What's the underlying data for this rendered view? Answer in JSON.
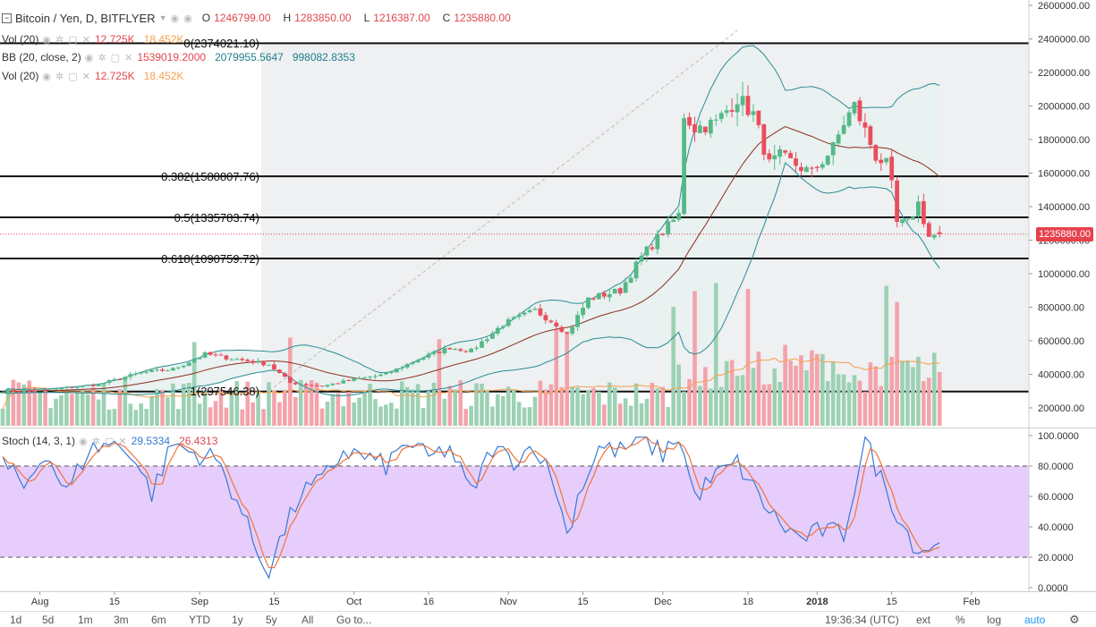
{
  "header": {
    "title": "Bitcoin / Yen, D, BITFLYER",
    "open_label": "O",
    "open": "1246799.00",
    "high_label": "H",
    "high": "1283850.00",
    "low_label": "L",
    "low": "1216387.00",
    "close_label": "C",
    "close": "1235880.00"
  },
  "legends": {
    "vol1": {
      "name": "Vol (20)",
      "v1": "12.725K",
      "v2": "18.452K"
    },
    "bb": {
      "name": "BB (20, close, 2)",
      "mid": "1539019.2000",
      "upper": "2079955.5647",
      "lower": "998082.8353"
    },
    "vol2": {
      "name": "Vol (20)",
      "v1": "12.725K",
      "v2": "18.452K"
    },
    "stoch": {
      "name": "Stoch (14, 3, 1)",
      "k": "29.5334",
      "d": "26.4313"
    }
  },
  "fib_labels": [
    "0(2374021.10)",
    "0.382(1580807.76)",
    "0.5(1335783.74)",
    "0.618(1090759.72)",
    "1(297546.38)"
  ],
  "last_price_tag": "1235880.00",
  "stoch_ticks": [
    "100.0000",
    "80.0000",
    "60.0000",
    "40.0000",
    "20.0000",
    "0.0000"
  ],
  "toolbar": {
    "ranges": [
      "1d",
      "5d",
      "1m",
      "3m",
      "6m",
      "YTD",
      "1y",
      "5y",
      "All"
    ],
    "goto": "Go to...",
    "time": "19:36:34 (UTC)",
    "ext": "ext",
    "pct": "%",
    "log": "log",
    "auto": "auto"
  },
  "colors": {
    "up": "#53b987",
    "down": "#eb4d5c",
    "vol_up": "#9cd1b4",
    "vol_down": "#f3a3ab",
    "bb_band": "#2a8c93",
    "bb_mid": "#8e2d1e",
    "bb_fill": "#e8f1f1",
    "vol_ma": "#f5a04b",
    "stoch_k": "#3779d4",
    "stoch_d": "#f0743c",
    "stoch_band": "#e6cdfb",
    "price_line": "#e5424e"
  },
  "chart_data": [
    {
      "type": "candlestick",
      "title": "Bitcoin / Yen, D, BITFLYER",
      "x_tick_labels": [
        "Aug",
        "15",
        "Sep",
        "15",
        "Oct",
        "16",
        "Nov",
        "15",
        "Dec",
        "18",
        "2018",
        "15",
        "Feb"
      ],
      "y_tick_labels": [
        "2600000.00",
        "2400000.00",
        "2200000.00",
        "2000000.00",
        "1800000.00",
        "1600000.00",
        "1400000.00",
        "1200000.00",
        "1000000.00",
        "800000.00",
        "600000.00",
        "400000.00",
        "200000.00"
      ],
      "ylim": [
        70000,
        2620000
      ],
      "candle_count": 177,
      "close_anchors": [
        [
          0,
          300000
        ],
        [
          8,
          305000
        ],
        [
          18,
          340000
        ],
        [
          26,
          410000
        ],
        [
          32,
          430000
        ],
        [
          38,
          520000
        ],
        [
          44,
          490000
        ],
        [
          50,
          460000
        ],
        [
          54,
          350000
        ],
        [
          60,
          330000
        ],
        [
          66,
          370000
        ],
        [
          72,
          400000
        ],
        [
          78,
          490000
        ],
        [
          84,
          560000
        ],
        [
          88,
          540000
        ],
        [
          94,
          700000
        ],
        [
          100,
          780000
        ],
        [
          104,
          700000
        ],
        [
          106,
          640000
        ],
        [
          110,
          850000
        ],
        [
          116,
          900000
        ],
        [
          120,
          1100000
        ],
        [
          124,
          1250000
        ],
        [
          127,
          1350000
        ],
        [
          128,
          1950000
        ],
        [
          130,
          1870000
        ],
        [
          134,
          1900000
        ],
        [
          138,
          2050000
        ],
        [
          141,
          1950000
        ],
        [
          144,
          1650000
        ],
        [
          146,
          1700000
        ],
        [
          149,
          1650000
        ],
        [
          152,
          1600000
        ],
        [
          156,
          1750000
        ],
        [
          158,
          1900000
        ],
        [
          160,
          2000000
        ],
        [
          162,
          1850000
        ],
        [
          164,
          1700000
        ],
        [
          166,
          1650000
        ],
        [
          167,
          1520000
        ],
        [
          168,
          1300000
        ],
        [
          170,
          1300000
        ],
        [
          172,
          1420000
        ],
        [
          174,
          1220000
        ],
        [
          176,
          1235880
        ]
      ],
      "fibonacci_levels": [
        {
          "ratio": 0,
          "price": 2374021.1
        },
        {
          "ratio": 0.382,
          "price": 1580807.76
        },
        {
          "ratio": 0.5,
          "price": 1335783.74
        },
        {
          "ratio": 0.618,
          "price": 1090759.72
        },
        {
          "ratio": 1,
          "price": 297546.38
        }
      ],
      "last_close": 1235880.0,
      "last_bar": {
        "open": 1246799.0,
        "high": 1283850.0,
        "low": 1216387.0,
        "close": 1235880.0
      },
      "bollinger_last": {
        "basis": 1539019.2,
        "upper": 2079955.5647,
        "lower": 998082.8353
      },
      "volume_last": {
        "volume": "12.725K",
        "ma": "18.452K"
      }
    },
    {
      "type": "line",
      "title": "Stoch (14, 3, 1)",
      "ylim": [
        0,
        100
      ],
      "y_tick_labels": [
        "100.0000",
        "80.0000",
        "60.0000",
        "40.0000",
        "20.0000",
        "0.0000"
      ],
      "bands": [
        20,
        80
      ],
      "k_anchors": [
        [
          0,
          82
        ],
        [
          4,
          66
        ],
        [
          8,
          90
        ],
        [
          12,
          62
        ],
        [
          16,
          90
        ],
        [
          20,
          95
        ],
        [
          24,
          90
        ],
        [
          28,
          62
        ],
        [
          32,
          95
        ],
        [
          36,
          88
        ],
        [
          40,
          85
        ],
        [
          44,
          58
        ],
        [
          48,
          22
        ],
        [
          50,
          12
        ],
        [
          52,
          30
        ],
        [
          56,
          62
        ],
        [
          60,
          70
        ],
        [
          64,
          90
        ],
        [
          68,
          86
        ],
        [
          72,
          80
        ],
        [
          76,
          96
        ],
        [
          80,
          85
        ],
        [
          84,
          92
        ],
        [
          88,
          62
        ],
        [
          92,
          92
        ],
        [
          96,
          84
        ],
        [
          100,
          94
        ],
        [
          104,
          65
        ],
        [
          106,
          34
        ],
        [
          108,
          60
        ],
        [
          112,
          92
        ],
        [
          116,
          90
        ],
        [
          120,
          97
        ],
        [
          124,
          88
        ],
        [
          127,
          100
        ],
        [
          130,
          60
        ],
        [
          134,
          74
        ],
        [
          138,
          82
        ],
        [
          142,
          60
        ],
        [
          146,
          42
        ],
        [
          150,
          32
        ],
        [
          154,
          38
        ],
        [
          158,
          35
        ],
        [
          162,
          98
        ],
        [
          164,
          80
        ],
        [
          166,
          64
        ],
        [
          169,
          42
        ],
        [
          172,
          24
        ],
        [
          176,
          30
        ]
      ],
      "k_last": 29.5334,
      "d_last": 26.4313
    }
  ]
}
